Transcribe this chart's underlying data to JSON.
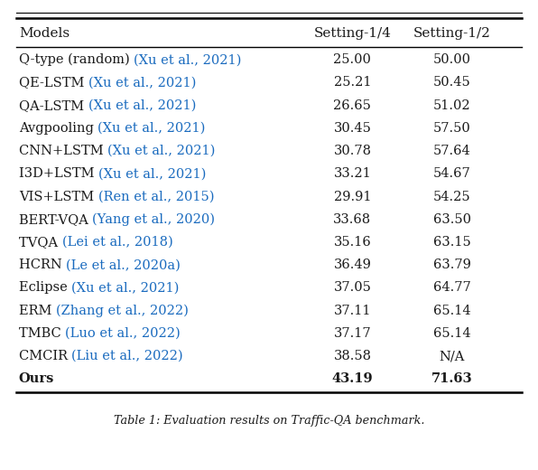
{
  "header": [
    "Models",
    "Setting-1/4",
    "Setting-1/2"
  ],
  "rows": [
    [
      "Q-type (random) (Xu et al., 2021)",
      "25.00",
      "50.00"
    ],
    [
      "QE-LSTM (Xu et al., 2021)",
      "25.21",
      "50.45"
    ],
    [
      "QA-LSTM (Xu et al., 2021)",
      "26.65",
      "51.02"
    ],
    [
      "Avgpooling (Xu et al., 2021)",
      "30.45",
      "57.50"
    ],
    [
      "CNN+LSTM (Xu et al., 2021)",
      "30.78",
      "57.64"
    ],
    [
      "I3D+LSTM (Xu et al., 2021)",
      "33.21",
      "54.67"
    ],
    [
      "VIS+LSTM (Ren et al., 2015)",
      "29.91",
      "54.25"
    ],
    [
      "BERT-VQA (Yang et al., 2020)",
      "33.68",
      "63.50"
    ],
    [
      "TVQA (Lei et al., 2018)",
      "35.16",
      "63.15"
    ],
    [
      "HCRN (Le et al., 2020a)",
      "36.49",
      "63.79"
    ],
    [
      "Eclipse (Xu et al., 2021)",
      "37.05",
      "64.77"
    ],
    [
      "ERM (Zhang et al., 2022)",
      "37.11",
      "65.14"
    ],
    [
      "TMBC (Luo et al., 2022)",
      "37.17",
      "65.14"
    ],
    [
      "CMCIR (Liu et al., 2022)",
      "38.58",
      "N/A"
    ],
    [
      "Ours",
      "43.19",
      "71.63"
    ]
  ],
  "black_parts": [
    "Q-type (random) ",
    "QE-LSTM ",
    "QA-LSTM ",
    "Avgpooling ",
    "CNN+LSTM ",
    "I3D+LSTM ",
    "VIS+LSTM ",
    "BERT-VQA ",
    "TVQA ",
    "HCRN ",
    "Eclipse ",
    "ERM ",
    "TMBC ",
    "CMCIR ",
    "Ours"
  ],
  "blue_parts": [
    "(Xu et al., 2021)",
    "(Xu et al., 2021)",
    "(Xu et al., 2021)",
    "(Xu et al., 2021)",
    "(Xu et al., 2021)",
    "(Xu et al., 2021)",
    "(Ren et al., 2015)",
    "(Yang et al., 2020)",
    "(Lei et al., 2018)",
    "(Le et al., 2020a)",
    "(Xu et al., 2021)",
    "(Zhang et al., 2022)",
    "(Luo et al., 2022)",
    "(Liu et al., 2022)",
    ""
  ],
  "bold_last_row": true,
  "citation_color": "#1a6bbf",
  "text_color": "#1a1a1a",
  "background_color": "#ffffff",
  "font_size": 10.5,
  "header_font_size": 11.0,
  "fig_width": 5.96,
  "fig_height": 5.2,
  "caption": "Table 1: Evaluation results on Traffic-QA benchmark."
}
